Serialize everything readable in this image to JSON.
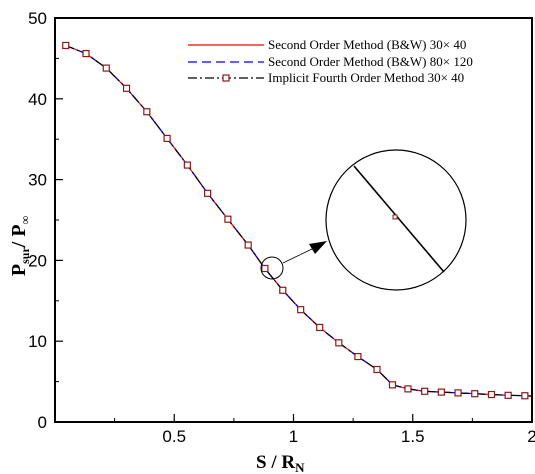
{
  "chart_data": {
    "type": "line",
    "xlabel": "S / R",
    "xlabel_sub": "N",
    "ylabel_parts": {
      "a": "P",
      "a_sub": "sur",
      "sep": "/ P",
      "b_sub": "∞"
    },
    "xlim": [
      0,
      2
    ],
    "ylim": [
      0,
      50
    ],
    "xticks": [
      0.5,
      1,
      1.5,
      2
    ],
    "xtick_labels": [
      "0.5",
      "1",
      "1.5",
      "2"
    ],
    "yticks": [
      0,
      10,
      20,
      30,
      40,
      50
    ],
    "ytick_labels": [
      "0",
      "10",
      "20",
      "30",
      "40",
      "50"
    ],
    "grid": false,
    "legend_position": "top-right",
    "series": [
      {
        "name": "Second Order Method (B&W)  30× 40",
        "style": "solid",
        "color": "#ff0000",
        "marker": "none",
        "x": [
          0.045,
          0.13,
          0.215,
          0.3,
          0.385,
          0.47,
          0.555,
          0.64,
          0.725,
          0.81,
          0.88,
          0.955,
          1.03,
          1.11,
          1.19,
          1.27,
          1.35,
          1.415,
          1.48,
          1.55,
          1.62,
          1.69,
          1.76,
          1.83,
          1.9,
          1.97,
          2.0
        ],
        "y": [
          46.6,
          45.6,
          43.8,
          41.3,
          38.4,
          35.1,
          31.8,
          28.3,
          25.1,
          21.9,
          19.0,
          16.3,
          13.9,
          11.7,
          9.8,
          8.1,
          6.5,
          4.6,
          4.1,
          3.8,
          3.7,
          3.6,
          3.5,
          3.4,
          3.3,
          3.25,
          3.2
        ]
      },
      {
        "name": "Second Order Method (B&W)  80× 120",
        "style": "dashed",
        "color": "#0000ff",
        "marker": "none",
        "x": [
          0.045,
          0.13,
          0.215,
          0.3,
          0.385,
          0.47,
          0.555,
          0.64,
          0.725,
          0.81,
          0.88,
          0.955,
          1.03,
          1.11,
          1.19,
          1.27,
          1.35,
          1.415,
          1.48,
          1.55,
          1.62,
          1.69,
          1.76,
          1.83,
          1.9,
          1.97,
          2.0
        ],
        "y": [
          46.6,
          45.6,
          43.8,
          41.3,
          38.4,
          35.1,
          31.8,
          28.3,
          25.1,
          21.9,
          19.0,
          16.3,
          13.9,
          11.7,
          9.8,
          8.1,
          6.5,
          4.6,
          4.1,
          3.8,
          3.7,
          3.6,
          3.5,
          3.4,
          3.3,
          3.25,
          3.2
        ]
      },
      {
        "name": "Implicit Fourth Order Method   30× 40",
        "style": "dashdot",
        "color": "#000000",
        "marker": "square",
        "marker_color": "#8b1a1a",
        "x": [
          0.045,
          0.13,
          0.215,
          0.3,
          0.385,
          0.47,
          0.555,
          0.64,
          0.725,
          0.81,
          0.88,
          0.955,
          1.03,
          1.11,
          1.19,
          1.27,
          1.35,
          1.415,
          1.48,
          1.55,
          1.62,
          1.69,
          1.76,
          1.83,
          1.9,
          1.97,
          2.0
        ],
        "y": [
          46.6,
          45.6,
          43.8,
          41.3,
          38.4,
          35.1,
          31.8,
          28.3,
          25.1,
          21.9,
          19.0,
          16.3,
          13.9,
          11.7,
          9.8,
          8.1,
          6.5,
          4.6,
          4.1,
          3.8,
          3.7,
          3.6,
          3.5,
          3.4,
          3.3,
          3.25,
          3.2
        ]
      }
    ],
    "inset": {
      "type": "zoom-circle",
      "focus_x": 0.88,
      "focus_y": 19.0
    }
  }
}
